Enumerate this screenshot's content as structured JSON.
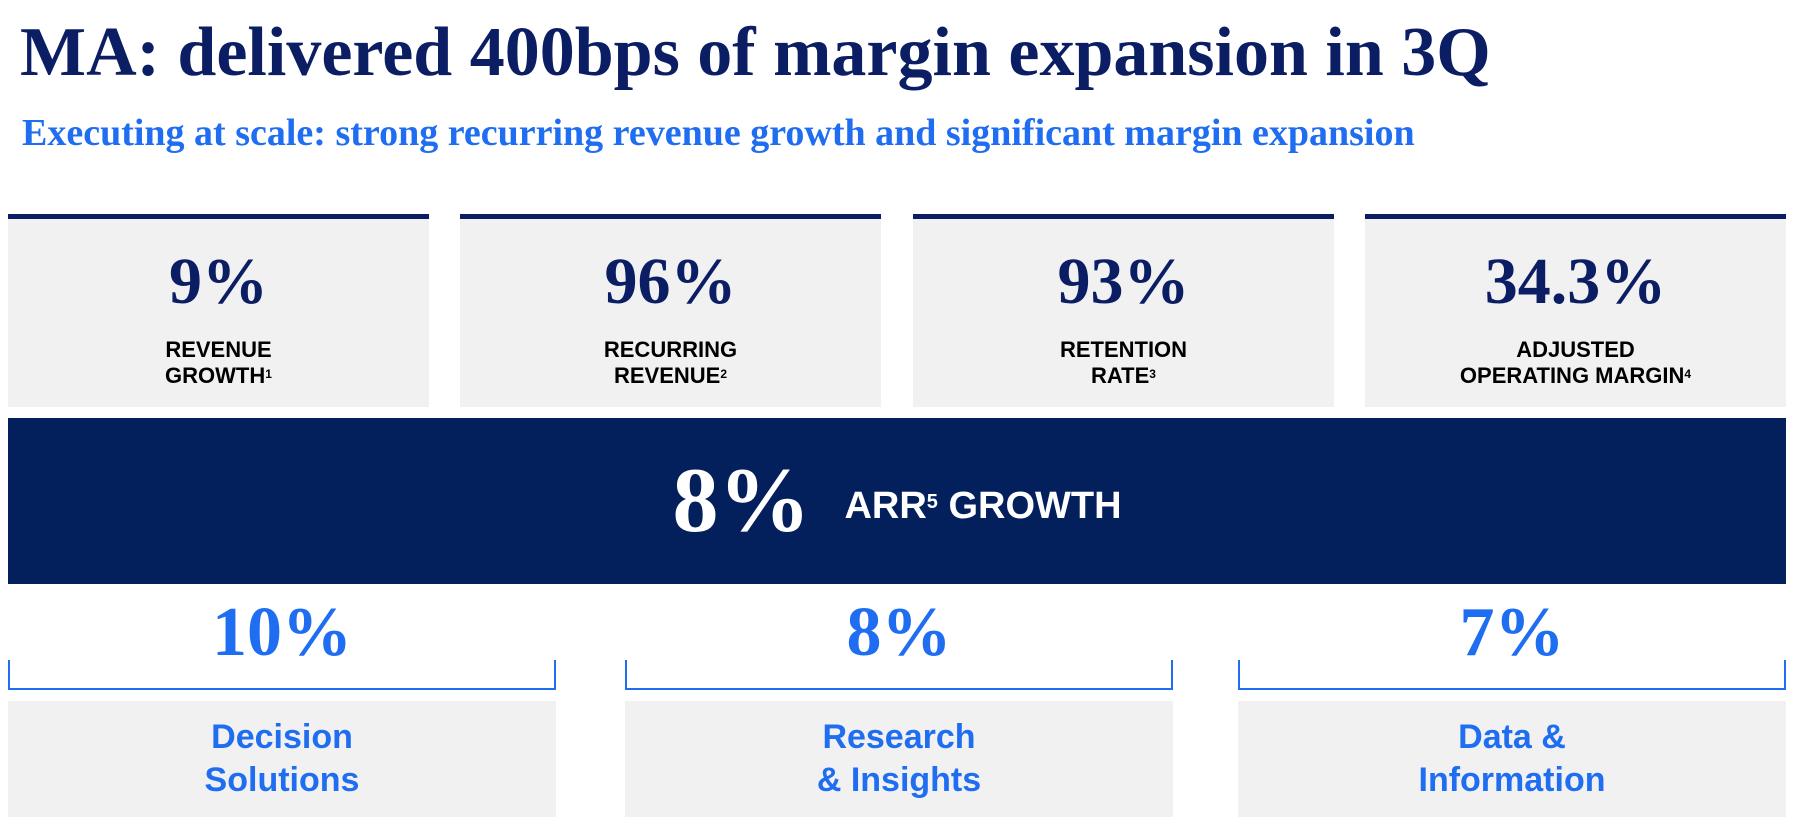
{
  "header": {
    "title": "MA: delivered 400bps of margin expansion in 3Q",
    "subtitle": "Executing at scale: strong recurring revenue growth and significant margin expansion"
  },
  "stats": [
    {
      "value": "9%",
      "label_line1": "REVENUE",
      "label_line2": "GROWTH",
      "footnote": "1"
    },
    {
      "value": "96%",
      "label_line1": "RECURRING",
      "label_line2": "REVENUE",
      "footnote": "2"
    },
    {
      "value": "93%",
      "label_line1": "RETENTION",
      "label_line2": "RATE",
      "footnote": "3"
    },
    {
      "value": "34.3%",
      "label_line1": "ADJUSTED",
      "label_line2": "OPERATING MARGIN",
      "footnote": "4"
    }
  ],
  "banner": {
    "value": "8%",
    "label_prefix": "ARR",
    "footnote": "5",
    "label_suffix": " GROWTH"
  },
  "segments": [
    {
      "value": "10%",
      "label_line1": "Decision",
      "label_line2": "Solutions"
    },
    {
      "value": "8%",
      "label_line1": "Research",
      "label_line2": "& Insights"
    },
    {
      "value": "7%",
      "label_line1": "Data &",
      "label_line2": "Information"
    }
  ],
  "colors": {
    "navy": "#0b1d63",
    "banner_navy": "#031f5c",
    "accent_blue": "#1f6df0",
    "card_gray": "#f1f1f1"
  }
}
